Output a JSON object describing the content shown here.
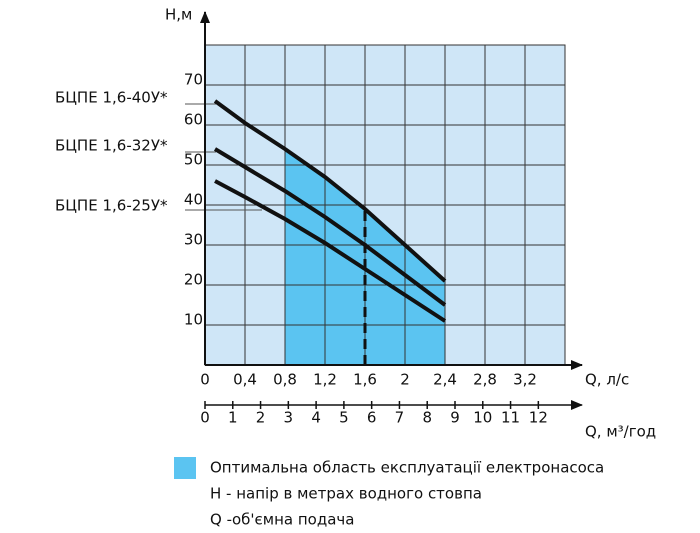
{
  "chart_data": {
    "type": "line",
    "y_label": "H,м",
    "x_label": "Q, л/с",
    "x2_label": "Q, м³/год",
    "x": [
      0.1,
      0.4,
      0.8,
      1.2,
      1.6,
      2.0,
      2.4
    ],
    "series": [
      {
        "name": "БЦПЕ 1,6-40У*",
        "color": "#111111",
        "values": [
          66,
          60.5,
          54,
          47,
          39,
          30,
          21
        ]
      },
      {
        "name": "БЦПЕ 1,6-32У*",
        "color": "#111111",
        "values": [
          54,
          49.5,
          43.5,
          37,
          30,
          22.5,
          15
        ]
      },
      {
        "name": "БЦПЕ 1,6-25У*",
        "color": "#111111",
        "values": [
          46,
          42,
          36.5,
          30.5,
          24,
          17.5,
          11
        ]
      }
    ],
    "xlim": [
      0,
      3.6
    ],
    "ylim": [
      0,
      80
    ],
    "xticks": [
      0,
      {
        "value": 0.4,
        "label": "0,4"
      },
      {
        "value": 0.8,
        "label": "0,8"
      },
      {
        "value": 1.2,
        "label": "1,2"
      },
      {
        "value": 1.6,
        "label": "1,6"
      },
      2,
      {
        "value": 2.4,
        "label": "2,4"
      },
      {
        "value": 2.8,
        "label": "2,8"
      },
      {
        "value": 3.2,
        "label": "3,2"
      }
    ],
    "yticks": [
      10,
      20,
      30,
      40,
      50,
      60,
      70
    ],
    "x2lim": [
      0,
      12.96
    ],
    "x2ticks": [
      0,
      1,
      2,
      3,
      4,
      5,
      6,
      7,
      8,
      9,
      10,
      11,
      12
    ],
    "optimal_range": [
      0.8,
      2.4
    ],
    "marker_x": 1.6,
    "grid": true,
    "plot_color": "#cfe6f7",
    "optimal_color": "#5bc4f1",
    "legend": [
      "Оптимальна область експлуатації електронасоса",
      "H - напір в метрах водного стовпа",
      "Q -об'ємна подача"
    ]
  }
}
